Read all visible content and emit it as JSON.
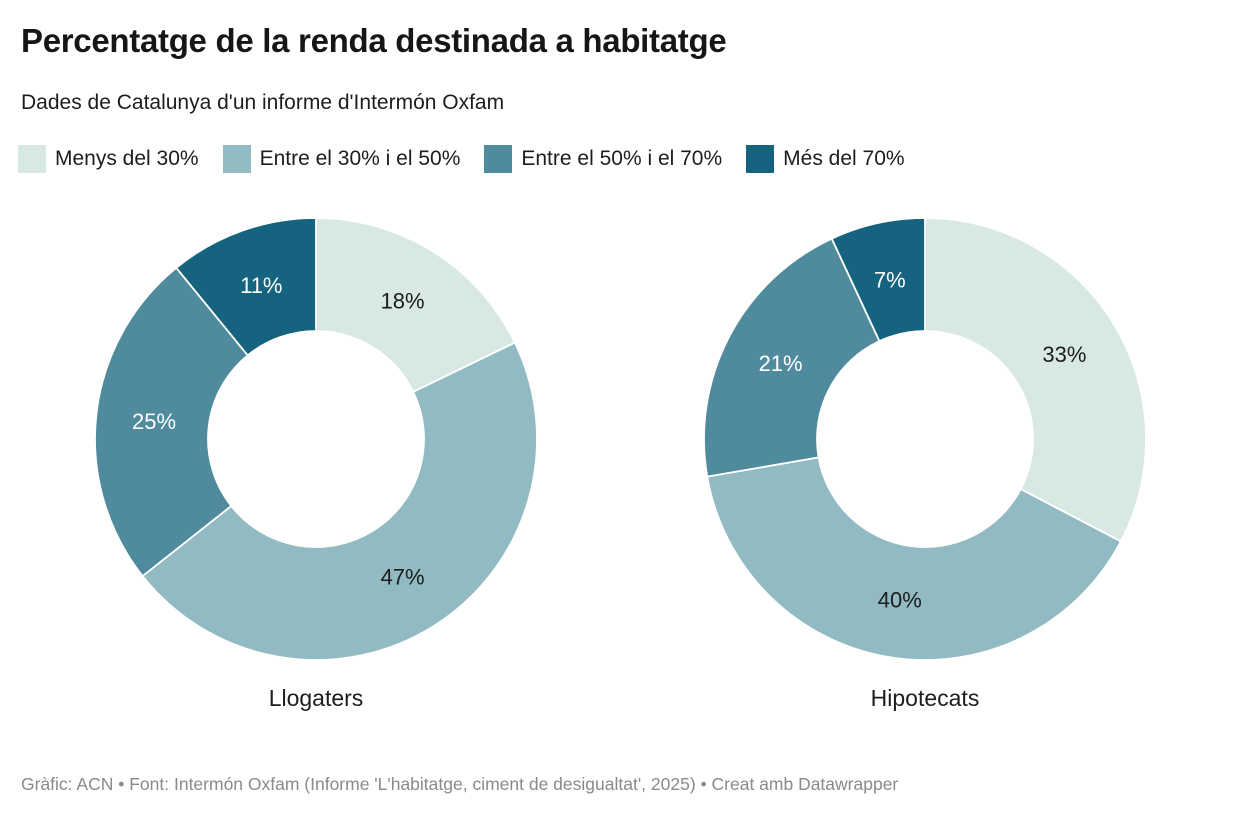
{
  "header": {
    "title": "Percentatge de la renda destinada a habitatge",
    "subtitle": "Dades de Catalunya d'un informe d'Intermón Oxfam"
  },
  "legend": {
    "items": [
      {
        "label": "Menys del 30%",
        "color": "#d8e8e5"
      },
      {
        "label": "Entre el 30% i el 50%",
        "color": "#91bac2"
      },
      {
        "label": "Entre el 50% i el 70%",
        "color": "#4f8b9c"
      },
      {
        "label": "Més del 70%",
        "color": "#15637f"
      }
    ]
  },
  "chart_data": {
    "type": "pie",
    "variant": "donut",
    "unit": "%",
    "legend_position": "top",
    "start_angle_deg": 0,
    "direction": "clockwise",
    "categories": [
      "Menys del 30%",
      "Entre el 30% i el 50%",
      "Entre el 50% i el 70%",
      "Més del 70%"
    ],
    "colors": [
      "#d8e8e5",
      "#91bac2",
      "#4f8b9c",
      "#15637f"
    ],
    "slice_label_colors": [
      "#1d1d1d",
      "#1d1d1d",
      "#ffffff",
      "#ffffff"
    ],
    "title": "Percentatge de la renda destinada a habitatge",
    "subtitle": "Dades de Catalunya d'un informe d'Intermón Oxfam",
    "charts": [
      {
        "name": "Llogaters",
        "values": [
          18,
          47,
          25,
          11
        ],
        "labels": [
          "18%",
          "47%",
          "25%",
          "11%"
        ]
      },
      {
        "name": "Hipotecats",
        "values": [
          33,
          40,
          21,
          7
        ],
        "labels": [
          "33%",
          "40%",
          "21%",
          "7%"
        ]
      }
    ]
  },
  "footer": {
    "text": "Gràfic: ACN • Font: Intermón Oxfam (Informe 'L'habitatge, ciment de desigualtat', 2025) • Creat amb Datawrapper"
  }
}
